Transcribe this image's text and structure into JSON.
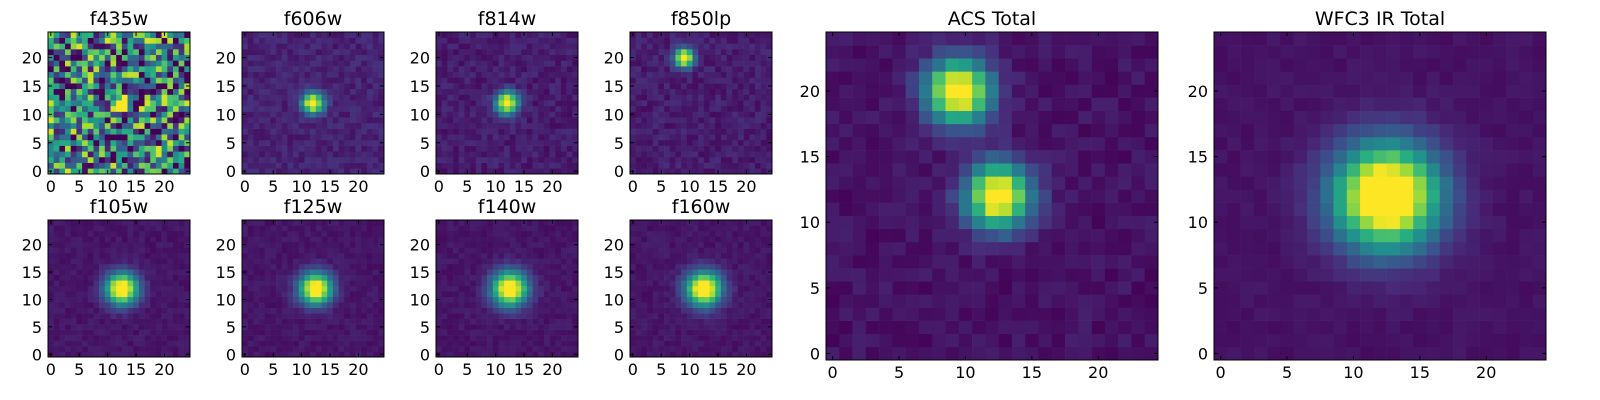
{
  "chart_data": [
    {
      "type": "heatmap",
      "title": "f435w",
      "xticks": [
        0,
        5,
        10,
        15,
        20
      ],
      "yticks": [
        0,
        5,
        10,
        15,
        20
      ],
      "xlim": [
        0,
        24
      ],
      "ylim": [
        0,
        24
      ],
      "sources": [
        {
          "x": 12,
          "y": 12
        }
      ],
      "background": "noisy"
    },
    {
      "type": "heatmap",
      "title": "f606w",
      "xticks": [
        0,
        5,
        10,
        15,
        20
      ],
      "yticks": [
        0,
        5,
        10,
        15,
        20
      ],
      "xlim": [
        0,
        24
      ],
      "ylim": [
        0,
        24
      ],
      "sources": [
        {
          "x": 12,
          "y": 12
        }
      ],
      "background": "low"
    },
    {
      "type": "heatmap",
      "title": "f814w",
      "xticks": [
        0,
        5,
        10,
        15,
        20
      ],
      "yticks": [
        0,
        5,
        10,
        15,
        20
      ],
      "xlim": [
        0,
        24
      ],
      "ylim": [
        0,
        24
      ],
      "sources": [
        {
          "x": 12,
          "y": 12
        }
      ],
      "background": "low"
    },
    {
      "type": "heatmap",
      "title": "f850lp",
      "xticks": [
        0,
        5,
        10,
        15,
        20
      ],
      "yticks": [
        0,
        5,
        10,
        15,
        20
      ],
      "xlim": [
        0,
        24
      ],
      "ylim": [
        0,
        24
      ],
      "sources": [
        {
          "x": 9,
          "y": 20
        }
      ],
      "background": "low"
    },
    {
      "type": "heatmap",
      "title": "f105w",
      "xticks": [
        0,
        5,
        10,
        15,
        20
      ],
      "yticks": [
        0,
        5,
        10,
        15,
        20
      ],
      "xlim": [
        0,
        24
      ],
      "ylim": [
        0,
        24
      ],
      "sources": [
        {
          "x": 12.5,
          "y": 12
        }
      ],
      "background": "low"
    },
    {
      "type": "heatmap",
      "title": "f125w",
      "xticks": [
        0,
        5,
        10,
        15,
        20
      ],
      "yticks": [
        0,
        5,
        10,
        15,
        20
      ],
      "xlim": [
        0,
        24
      ],
      "ylim": [
        0,
        24
      ],
      "sources": [
        {
          "x": 12.5,
          "y": 12
        }
      ],
      "background": "low"
    },
    {
      "type": "heatmap",
      "title": "f140w",
      "xticks": [
        0,
        5,
        10,
        15,
        20
      ],
      "yticks": [
        0,
        5,
        10,
        15,
        20
      ],
      "xlim": [
        0,
        24
      ],
      "ylim": [
        0,
        24
      ],
      "sources": [
        {
          "x": 12.5,
          "y": 12
        }
      ],
      "background": "low"
    },
    {
      "type": "heatmap",
      "title": "f160w",
      "xticks": [
        0,
        5,
        10,
        15,
        20
      ],
      "yticks": [
        0,
        5,
        10,
        15,
        20
      ],
      "xlim": [
        0,
        24
      ],
      "ylim": [
        0,
        24
      ],
      "sources": [
        {
          "x": 12.5,
          "y": 12
        }
      ],
      "background": "low"
    },
    {
      "type": "heatmap",
      "title": "ACS Total",
      "xticks": [
        0,
        5,
        10,
        15,
        20
      ],
      "yticks": [
        0,
        5,
        10,
        15,
        20
      ],
      "xlim": [
        0,
        24
      ],
      "ylim": [
        0,
        24
      ],
      "sources": [
        {
          "x": 9.5,
          "y": 20
        },
        {
          "x": 12.5,
          "y": 12
        }
      ],
      "background": "low"
    },
    {
      "type": "heatmap",
      "title": "WFC3 IR Total",
      "xticks": [
        0,
        5,
        10,
        15,
        20
      ],
      "yticks": [
        0,
        5,
        10,
        15,
        20
      ],
      "xlim": [
        0,
        24
      ],
      "ylim": [
        0,
        24
      ],
      "sources": [
        {
          "x": 12.5,
          "y": 12
        }
      ],
      "background": "low"
    }
  ],
  "colormap": "viridis"
}
